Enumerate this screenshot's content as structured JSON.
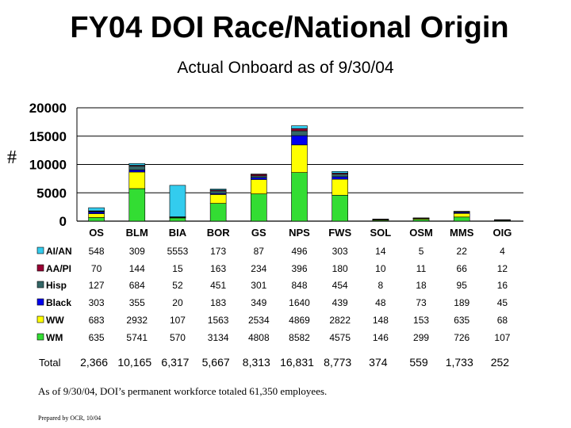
{
  "title": "FY04 DOI Race/National Origin",
  "subtitle": "Actual Onboard as of 9/30/04",
  "ylabel": "#",
  "footnote": "As of 9/30/04, DOI’s permanent workforce totaled 61,350 employees.",
  "prepared_by": "Prepared by OCR, 10/04",
  "total_label": "Total",
  "chart_data": {
    "type": "bar",
    "stacked": true,
    "title": "Actual Onboard as of 9/30/04",
    "xlabel": "",
    "ylabel": "#",
    "ylim": [
      0,
      20000
    ],
    "yticks": [
      0,
      5000,
      10000,
      15000,
      20000
    ],
    "categories": [
      "OS",
      "BLM",
      "BIA",
      "BOR",
      "GS",
      "NPS",
      "FWS",
      "SOL",
      "OSM",
      "MMS",
      "OIG"
    ],
    "series": [
      {
        "name": "WM",
        "color": "#33dd33",
        "values": [
          635,
          5741,
          570,
          3134,
          4808,
          8582,
          4575,
          146,
          299,
          726,
          107
        ]
      },
      {
        "name": "WW",
        "color": "#ffff00",
        "values": [
          683,
          2932,
          107,
          1563,
          2534,
          4869,
          2822,
          148,
          153,
          635,
          68
        ]
      },
      {
        "name": "Black",
        "color": "#0000ee",
        "values": [
          303,
          355,
          20,
          183,
          349,
          1640,
          439,
          48,
          73,
          189,
          45
        ]
      },
      {
        "name": "Hisp",
        "color": "#336666",
        "values": [
          127,
          684,
          52,
          451,
          301,
          848,
          454,
          8,
          18,
          95,
          16
        ]
      },
      {
        "name": "AA/PI",
        "color": "#990033",
        "values": [
          70,
          144,
          15,
          163,
          234,
          396,
          180,
          10,
          11,
          66,
          12
        ]
      },
      {
        "name": "AI/AN",
        "color": "#33ccee",
        "values": [
          548,
          309,
          5553,
          173,
          87,
          496,
          303,
          14,
          5,
          22,
          4
        ]
      }
    ],
    "table_rows": [
      {
        "name": "AI/AN",
        "cells": [
          "548",
          "309",
          "5553",
          "173",
          "87",
          "496",
          "303",
          "14",
          "5",
          "22",
          "4"
        ]
      },
      {
        "name": "AA/PI",
        "cells": [
          "70",
          "144",
          "15",
          "163",
          "234",
          "396",
          "180",
          "10",
          "11",
          "66",
          "12"
        ]
      },
      {
        "name": "Hisp",
        "cells": [
          "127",
          "684",
          "52",
          "451",
          "301",
          "848",
          "454",
          "8",
          "18",
          "95",
          "16"
        ]
      },
      {
        "name": "Black",
        "cells": [
          "303",
          "355",
          "20",
          "183",
          "349",
          "1640",
          "439",
          "48",
          "73",
          "189",
          "45"
        ]
      },
      {
        "name": "WW",
        "cells": [
          "683",
          "2932",
          "107",
          "1563",
          "2534",
          "4869",
          "2822",
          "148",
          "153",
          "635",
          "68"
        ]
      },
      {
        "name": "WM",
        "cells": [
          "635",
          "5741",
          "570",
          "3134",
          "4808",
          "8582",
          "4575",
          "146",
          "299",
          "726",
          "107"
        ]
      }
    ],
    "totals": [
      "2,366",
      "10,165",
      "6,317",
      "5,667",
      "8,313",
      "16,831",
      "8,773",
      "374",
      "559",
      "1,733",
      "252"
    ],
    "grid": true,
    "legend": "table-left"
  }
}
